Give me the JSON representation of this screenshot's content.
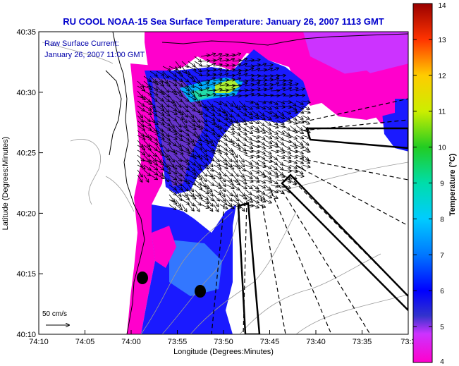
{
  "title": "RU COOL  NOAA-15  Sea Surface Temperature:  January 26, 2007 1113 GMT",
  "inset_labels": {
    "line1": "Raw Surface Current:",
    "line2": "January 26, 2007 11:00 GMT"
  },
  "axes": {
    "xlabel": "Longitude (Degrees:Minutes)",
    "ylabel": "Latitude (Degrees:Minutes)",
    "xticks": [
      "74:10",
      "74:05",
      "74:00",
      "73:55",
      "73:50",
      "73:45",
      "73:40",
      "73:35",
      "73:3"
    ],
    "yticks": [
      "40:35",
      "40:30",
      "40:25",
      "40:20",
      "40:15",
      "40:10"
    ]
  },
  "scale_label": "50 cm/s",
  "colorbar": {
    "label": "Temperature (°C)",
    "ticks": [
      "14",
      "13",
      "12",
      "11",
      "10",
      "9",
      "8",
      "7",
      "6",
      "5",
      "4"
    ],
    "min": 4,
    "max": 14
  },
  "colors": {
    "title": "#0000cc",
    "inset_text": "#0000aa",
    "land": "#ffffff"
  }
}
